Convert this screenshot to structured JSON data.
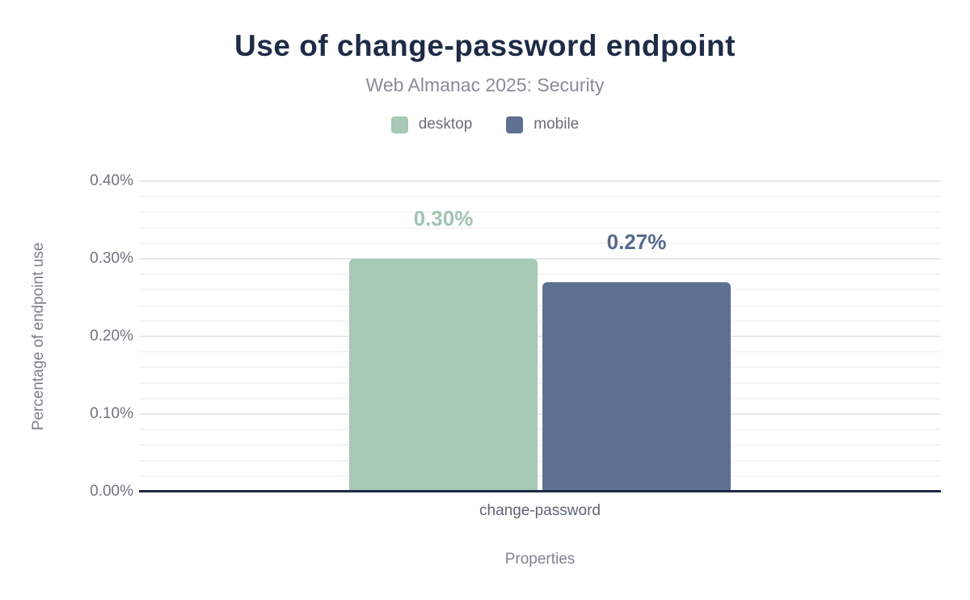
{
  "header": {
    "title": "Use of change-password endpoint",
    "subtitle": "Web Almanac 2025: Security"
  },
  "chart_data": {
    "type": "bar",
    "title": "Use of change-password endpoint",
    "subtitle": "Web Almanac 2025: Security",
    "categories": [
      "change-password"
    ],
    "series": [
      {
        "name": "desktop",
        "values": [
          0.3
        ],
        "value_labels": [
          "0.30%"
        ],
        "color": "#a6c8b5",
        "label_color": "#a0c4b0"
      },
      {
        "name": "mobile",
        "values": [
          0.27
        ],
        "value_labels": [
          "0.27%"
        ],
        "color": "#5f7190",
        "label_color": "#56698d"
      }
    ],
    "xlabel": "Properties",
    "ylabel": "Percentage of endpoint use",
    "ylim": [
      0,
      0.4
    ],
    "yticks": [
      "0.00%",
      "0.10%",
      "0.20%",
      "0.30%",
      "0.40%"
    ],
    "ytick_step_major": 0.1,
    "ytick_step_minor": 0.02,
    "grid": "horizontal",
    "legend_position": "top"
  },
  "colors": {
    "background": "#ffffff",
    "title_text": "#1e2b47",
    "subtitle_text": "#888d96",
    "legend_text": "#696e76",
    "tick_text": "#6f747d",
    "axis_title_text": "#7b8089",
    "category_text": "#5f6670",
    "baseline": "#1e2b47",
    "grid_major": "#e8e9eb",
    "grid_minor": "#f4f4f6"
  }
}
